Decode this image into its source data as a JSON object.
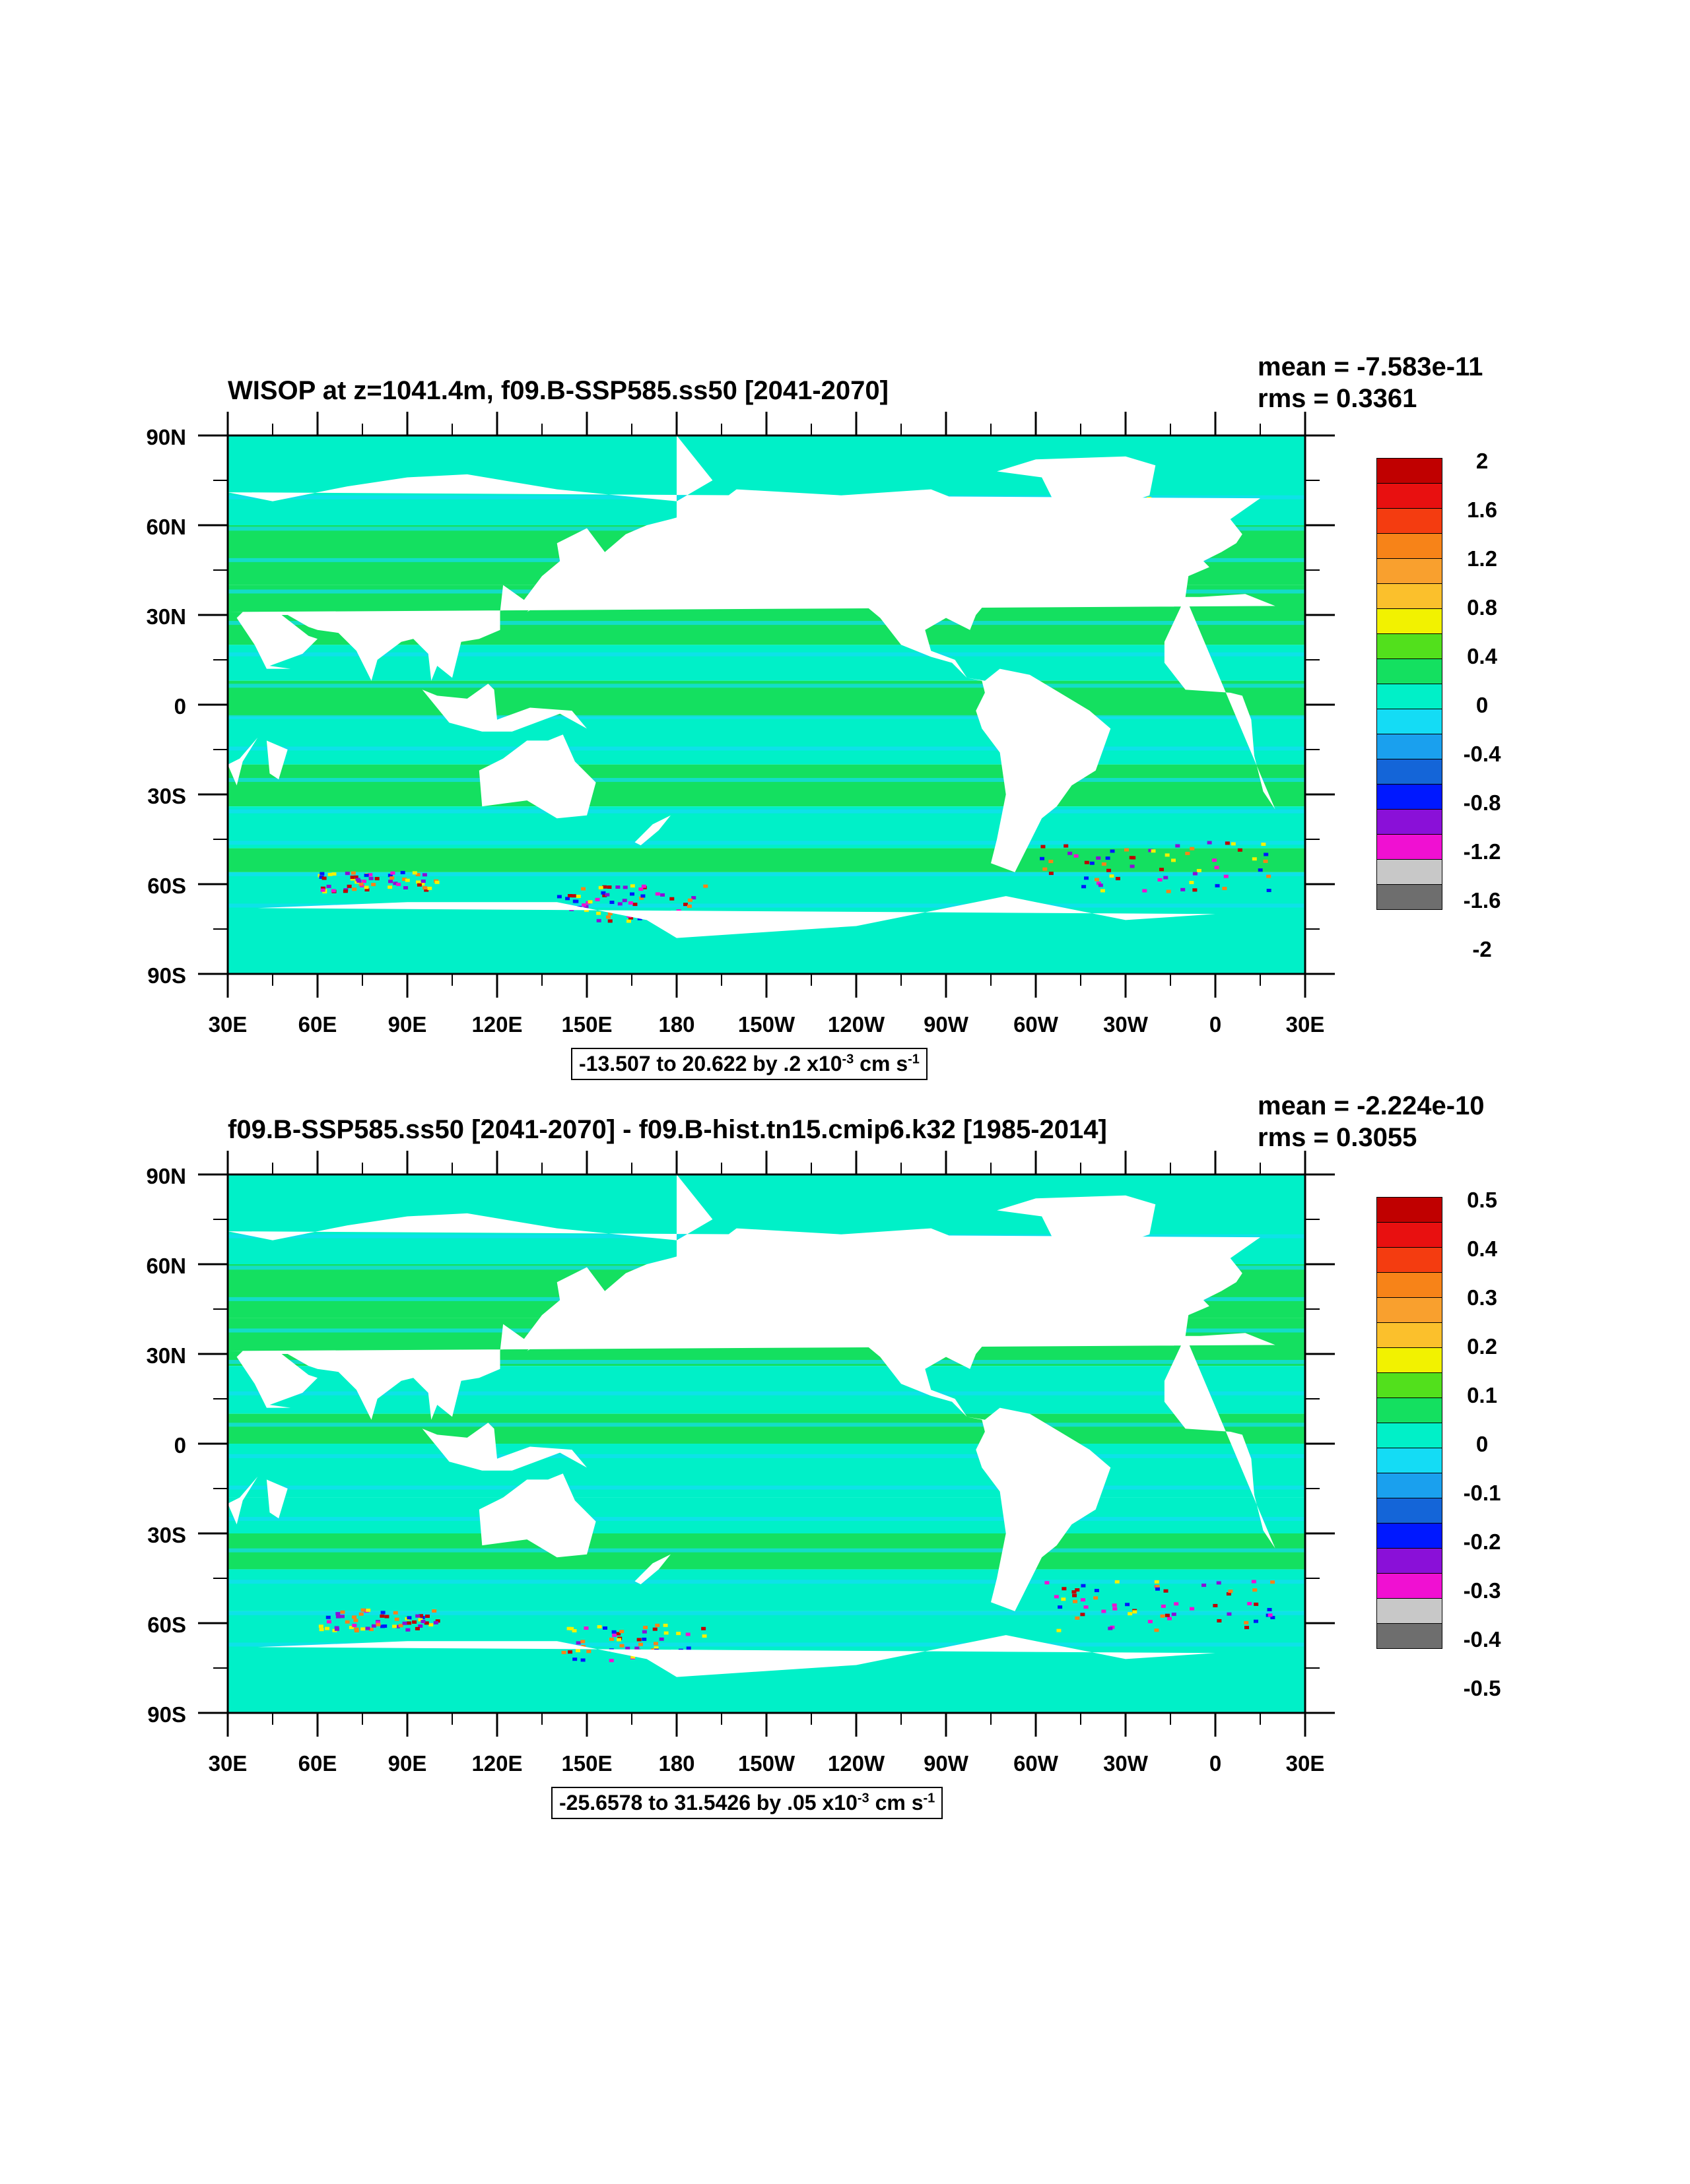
{
  "panels": [
    {
      "title": "WISOP at z=1041.4m, f09.B-SSP585.ss50 [2041-2070]",
      "mean": "mean = -7.583e-11",
      "rms": "rms = 0.3361",
      "lat_labels": [
        "90N",
        "60N",
        "30N",
        "0",
        "30S",
        "60S",
        "90S"
      ],
      "lon_labels": [
        "30E",
        "60E",
        "90E",
        "120E",
        "150E",
        "180",
        "150W",
        "120W",
        "90W",
        "60W",
        "30W",
        "0",
        "30E"
      ],
      "colorbar_labels": [
        "2",
        "1.6",
        "1.2",
        "0.8",
        "0.4",
        "0",
        "-0.4",
        "-0.8",
        "-1.2",
        "-1.6",
        "-2"
      ],
      "range": {
        "text": "-13.507 to 20.622 by .2 x10",
        "exp": "-3",
        "unit": " cm s",
        "unit_exp": "-1"
      }
    },
    {
      "title": "f09.B-SSP585.ss50 [2041-2070] - f09.B-hist.tn15.cmip6.k32 [1985-2014]",
      "mean": "mean = -2.224e-10",
      "rms": "rms = 0.3055",
      "lat_labels": [
        "90N",
        "60N",
        "30N",
        "0",
        "30S",
        "60S",
        "90S"
      ],
      "lon_labels": [
        "30E",
        "60E",
        "90E",
        "120E",
        "150E",
        "180",
        "150W",
        "120W",
        "90W",
        "60W",
        "30W",
        "0",
        "30E"
      ],
      "colorbar_labels": [
        "0.5",
        "0.4",
        "0.3",
        "0.2",
        "0.1",
        "0",
        "-0.1",
        "-0.2",
        "-0.3",
        "-0.4",
        "-0.5"
      ],
      "range": {
        "text": "-25.6578 to 31.5426 by .05 x10",
        "exp": "-3",
        "unit": " cm s",
        "unit_exp": "-1"
      }
    }
  ],
  "colors": {
    "colorbar": [
      "#c00000",
      "#e81010",
      "#f43c10",
      "#f78318",
      "#f9a02e",
      "#fbc02c",
      "#f2f200",
      "#52e01c",
      "#14e060",
      "#00f0c8",
      "#14dcf5",
      "#1aa0ee",
      "#1465d8",
      "#0018ff",
      "#8a10d8",
      "#f010d2",
      "#c8c8c8",
      "#6e6e6e"
    ],
    "ocean_main": "#00f0c8",
    "ocean_alt": "#14e060",
    "ocean_light": "#14dcf5",
    "land": "#ffffff"
  }
}
